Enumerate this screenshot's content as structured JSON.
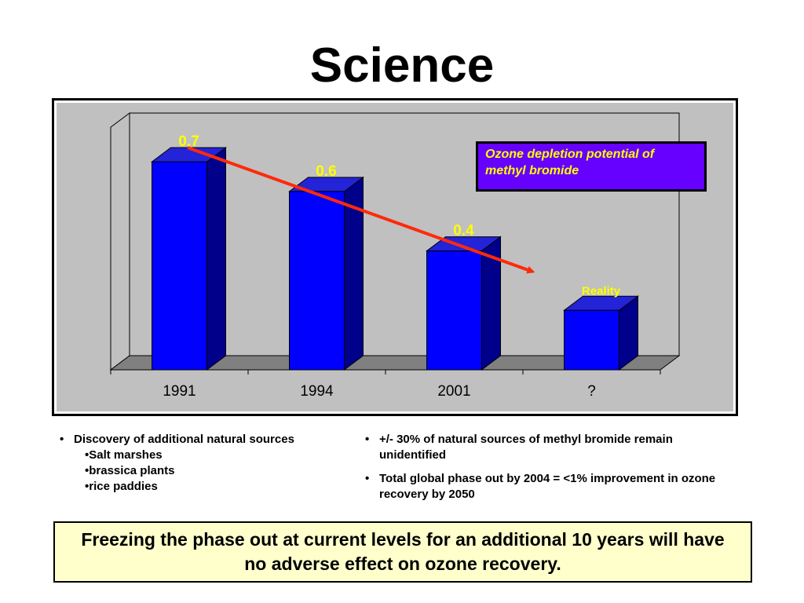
{
  "title": "Science",
  "chart_data": {
    "type": "bar",
    "categories": [
      "1991",
      "1994",
      "2001",
      "?"
    ],
    "values": [
      0.7,
      0.6,
      0.4,
      0.2
    ],
    "data_labels": [
      "0.7",
      "0.6",
      "0.4",
      "Reality"
    ],
    "annotation": "Ozone depletion potential of methyl bromide",
    "trend_arrow": true,
    "bar_style": "3d",
    "ylim": [
      0,
      1.0
    ],
    "grid": false,
    "colors": {
      "bar_front": "#0000ff",
      "bar_side": "#00008b",
      "bar_top": "#2323d8",
      "plot_background": "#c0c0c0",
      "data_label": "#ffff00",
      "arrow": "#ff2a0a",
      "annotation_bg": "#6600ff",
      "annotation_text": "#ffff00"
    }
  },
  "bullets_left": {
    "main": "Discovery of additional natural sources",
    "sub": [
      "•Salt marshes",
      "•brassica plants",
      "•rice paddies"
    ]
  },
  "bullets_right": [
    "+/- 30% of natural sources of methyl bromide remain unidentified",
    "Total global phase out by 2004 = <1% improvement in ozone recovery by 2050"
  ],
  "conclusion": "Freezing the phase out at current levels for an additional 10 years will have no adverse effect on ozone recovery.",
  "colors": {
    "conclusion_bg": "#ffffcc"
  }
}
